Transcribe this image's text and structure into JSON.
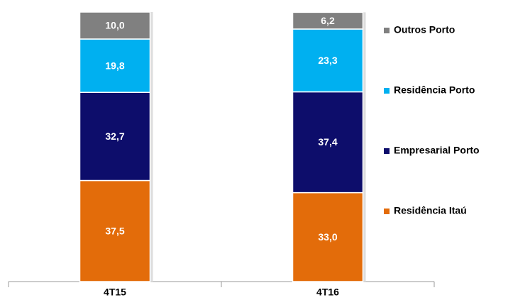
{
  "chart_data": {
    "type": "stacked_bar",
    "categories": [
      "4T15",
      "4T16"
    ],
    "series": [
      {
        "name": "Residência Itaú",
        "color": "#e36c0a",
        "values": [
          37.5,
          33.0
        ],
        "value_labels": [
          "37,5",
          "33,0"
        ]
      },
      {
        "name": "Empresarial Porto",
        "color": "#0d0d6b",
        "values": [
          32.7,
          37.4
        ],
        "value_labels": [
          "32,7",
          "37,4"
        ]
      },
      {
        "name": "Residência Porto",
        "color": "#00b0f0",
        "values": [
          19.8,
          23.3
        ],
        "value_labels": [
          "19,8",
          "23,3"
        ]
      },
      {
        "name": "Outros Porto",
        "color": "#808080",
        "values": [
          10.0,
          6.2
        ],
        "value_labels": [
          "10,0",
          "6,2"
        ]
      }
    ]
  }
}
